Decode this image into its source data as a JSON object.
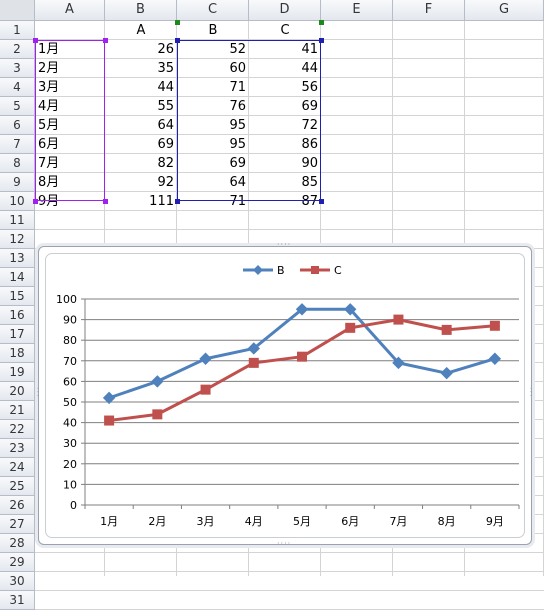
{
  "columns": [
    "A",
    "B",
    "C",
    "D",
    "E",
    "F",
    "G"
  ],
  "rows": [
    "1",
    "2",
    "3",
    "4",
    "5",
    "6",
    "7",
    "8",
    "9",
    "10",
    "11",
    "12",
    "13",
    "14",
    "15",
    "16",
    "17",
    "18",
    "19",
    "20",
    "21",
    "22",
    "23",
    "24",
    "25",
    "26",
    "27",
    "28",
    "29",
    "30",
    "31"
  ],
  "cells": {
    "header": {
      "b": "A",
      "c": "B",
      "d": "C"
    },
    "data": [
      {
        "a": "1月",
        "b": "26",
        "c": "52",
        "d": "41"
      },
      {
        "a": "2月",
        "b": "35",
        "c": "60",
        "d": "44"
      },
      {
        "a": "3月",
        "b": "44",
        "c": "71",
        "d": "56"
      },
      {
        "a": "4月",
        "b": "55",
        "c": "76",
        "d": "69"
      },
      {
        "a": "5月",
        "b": "64",
        "c": "95",
        "d": "72"
      },
      {
        "a": "6月",
        "b": "69",
        "c": "95",
        "d": "86"
      },
      {
        "a": "7月",
        "b": "82",
        "c": "69",
        "d": "90"
      },
      {
        "a": "8月",
        "b": "92",
        "c": "64",
        "d": "85"
      },
      {
        "a": "9月",
        "b": "111",
        "c": "71",
        "d": "87"
      }
    ]
  },
  "colors": {
    "seriesB": "#4f81bd",
    "seriesC": "#c0504d",
    "rangeCategory": "#a020f0",
    "rangeValues": "#1f1fb0",
    "rangeSeriesName": "#1a8a1a"
  },
  "chart_data": {
    "type": "line",
    "categories": [
      "1月",
      "2月",
      "3月",
      "4月",
      "5月",
      "6月",
      "7月",
      "8月",
      "9月"
    ],
    "series": [
      {
        "name": "B",
        "marker": "diamond",
        "values": [
          52,
          60,
          71,
          76,
          95,
          95,
          69,
          64,
          71
        ]
      },
      {
        "name": "C",
        "marker": "square",
        "values": [
          41,
          44,
          56,
          69,
          72,
          86,
          90,
          85,
          87
        ]
      }
    ],
    "ylim": [
      0,
      100
    ],
    "yticks": [
      "0",
      "10",
      "20",
      "30",
      "40",
      "50",
      "60",
      "70",
      "80",
      "90",
      "100"
    ],
    "grid": true,
    "legend": "top"
  }
}
